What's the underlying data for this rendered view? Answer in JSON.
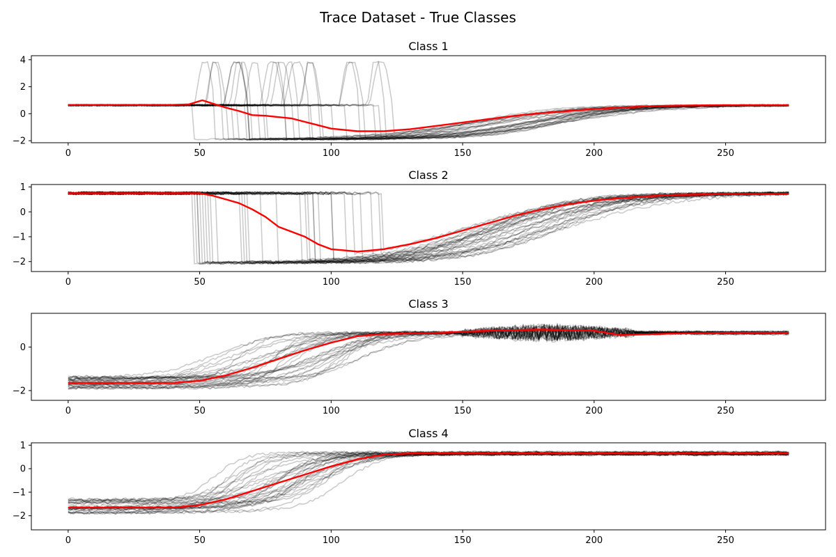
{
  "figure": {
    "suptitle": "Trace Dataset - True Classes"
  },
  "chart_data": [
    {
      "type": "line",
      "title": "Class 1",
      "xlabel": "",
      "ylabel": "",
      "xlim": [
        -14,
        288
      ],
      "ylim": [
        -2.15,
        4.3
      ],
      "xticks": [
        0,
        50,
        100,
        150,
        200,
        250
      ],
      "yticks": [
        -2,
        0,
        2,
        4
      ],
      "series_count": 30,
      "sample_color": "#000000",
      "sample_opacity": 0.2,
      "mean_color": "#ff0000",
      "series_shape": "baseline 0.63 until a step (~47-120), short pulse up to ~3.8, drop to ~-1.9, slow sigmoid recovery to 0.63 by ~225",
      "mean_series": {
        "name": "",
        "x": [
          0,
          20,
          40,
          46,
          51,
          55,
          60,
          65,
          70,
          75,
          80,
          85,
          90,
          95,
          100,
          105,
          110,
          120,
          130,
          140,
          150,
          160,
          170,
          180,
          190,
          200,
          210,
          220,
          230,
          240,
          250,
          260,
          274
        ],
        "y": [
          0.65,
          0.65,
          0.65,
          0.7,
          1.0,
          0.75,
          0.45,
          0.2,
          -0.1,
          -0.15,
          -0.25,
          -0.35,
          -0.6,
          -0.85,
          -1.1,
          -1.2,
          -1.3,
          -1.3,
          -1.15,
          -0.9,
          -0.65,
          -0.4,
          -0.15,
          0.05,
          0.2,
          0.35,
          0.45,
          0.55,
          0.6,
          0.62,
          0.63,
          0.63,
          0.63
        ]
      }
    },
    {
      "type": "line",
      "title": "Class 2",
      "xlabel": "",
      "ylabel": "",
      "xlim": [
        -14,
        288
      ],
      "ylim": [
        -2.4,
        1.1
      ],
      "xticks": [
        0,
        50,
        100,
        150,
        200,
        250
      ],
      "yticks": [
        -2,
        -1,
        0,
        1
      ],
      "series_count": 30,
      "sample_color": "#000000",
      "sample_opacity": 0.2,
      "mean_color": "#ff0000",
      "series_shape": "baseline 0.75 until a step (~52-120), drop to ~-2.0, slow sigmoid recovery to 0.72",
      "mean_series": {
        "name": "",
        "x": [
          0,
          20,
          40,
          50,
          55,
          60,
          65,
          70,
          75,
          80,
          85,
          90,
          95,
          100,
          105,
          110,
          120,
          130,
          140,
          150,
          160,
          170,
          180,
          190,
          200,
          210,
          220,
          230,
          240,
          250,
          260,
          274
        ],
        "y": [
          0.75,
          0.75,
          0.75,
          0.75,
          0.65,
          0.5,
          0.35,
          0.1,
          -0.2,
          -0.6,
          -0.8,
          -1.0,
          -1.3,
          -1.5,
          -1.55,
          -1.6,
          -1.5,
          -1.3,
          -1.05,
          -0.75,
          -0.45,
          -0.15,
          0.1,
          0.3,
          0.45,
          0.55,
          0.62,
          0.68,
          0.7,
          0.72,
          0.72,
          0.72
        ]
      }
    },
    {
      "type": "line",
      "title": "Class 3",
      "xlabel": "",
      "ylabel": "",
      "xlim": [
        -14,
        288
      ],
      "ylim": [
        -2.45,
        1.55
      ],
      "xticks": [
        0,
        50,
        100,
        150,
        200,
        250
      ],
      "yticks": [
        -2,
        0
      ],
      "series_count": 30,
      "sample_color": "#000000",
      "sample_opacity": 0.2,
      "mean_color": "#ff0000",
      "series_shape": "baseline ~-1.6 until ~45, rise to ~0.65 by ~115, oscillation region ~150-215, plateau 0.65",
      "mean_series": {
        "name": "",
        "x": [
          0,
          20,
          40,
          50,
          60,
          70,
          80,
          90,
          100,
          110,
          120,
          140,
          160,
          180,
          200,
          205,
          210,
          230,
          250,
          274
        ],
        "y": [
          -1.65,
          -1.65,
          -1.65,
          -1.55,
          -1.3,
          -0.95,
          -0.55,
          -0.15,
          0.2,
          0.5,
          0.6,
          0.65,
          0.75,
          0.8,
          0.75,
          0.65,
          0.55,
          0.62,
          0.65,
          0.65
        ]
      }
    },
    {
      "type": "line",
      "title": "Class 4",
      "xlabel": "",
      "ylabel": "",
      "xlim": [
        -14,
        288
      ],
      "ylim": [
        -2.6,
        1.1
      ],
      "xticks": [
        0,
        50,
        100,
        150,
        200,
        250
      ],
      "yticks": [
        -2,
        -1,
        0,
        1
      ],
      "series_count": 30,
      "sample_color": "#000000",
      "sample_opacity": 0.2,
      "mean_color": "#ff0000",
      "series_shape": "baseline ~-1.6 until ~45, rise to ~0.65 by ~125, plateau 0.65",
      "mean_series": {
        "name": "",
        "x": [
          0,
          20,
          40,
          50,
          60,
          70,
          80,
          90,
          100,
          110,
          120,
          130,
          150,
          200,
          250,
          274
        ],
        "y": [
          -1.65,
          -1.65,
          -1.65,
          -1.55,
          -1.3,
          -0.95,
          -0.6,
          -0.25,
          0.1,
          0.4,
          0.6,
          0.65,
          0.65,
          0.65,
          0.65,
          0.65
        ]
      }
    }
  ]
}
